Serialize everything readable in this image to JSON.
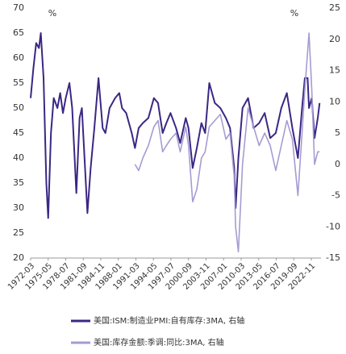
{
  "chart_data": {
    "type": "line",
    "left_unit": "%",
    "right_unit": "%",
    "x": [
      "1972-03",
      "1972-09",
      "1973-03",
      "1973-09",
      "1974-01",
      "1974-07",
      "1975-01",
      "1975-05",
      "1975-11",
      "1976-05",
      "1977-01",
      "1977-07",
      "1978-01",
      "1978-07",
      "1979-03",
      "1979-09",
      "1980-06",
      "1981-01",
      "1981-06",
      "1982-06",
      "1983-01",
      "1983-09",
      "1984-06",
      "1985-03",
      "1985-09",
      "1986-06",
      "1987-06",
      "1988-03",
      "1988-09",
      "1989-06",
      "1990-06",
      "1991-01",
      "1991-09",
      "1992-06",
      "1993-06",
      "1994-06",
      "1995-03",
      "1996-01",
      "1996-09",
      "1997-06",
      "1998-06",
      "1999-03",
      "2000-03",
      "2000-09",
      "2001-06",
      "2002-03",
      "2003-01",
      "2003-09",
      "2004-06",
      "2005-06",
      "2006-06",
      "2007-06",
      "2008-03",
      "2008-12",
      "2009-03",
      "2009-09",
      "2010-06",
      "2011-06",
      "2012-06",
      "2013-06",
      "2014-06",
      "2015-06",
      "2016-06",
      "2017-06",
      "2018-06",
      "2019-06",
      "2020-06",
      "2021-03",
      "2021-09",
      "2022-03",
      "2022-06",
      "2022-12",
      "2023-06",
      "2024-01",
      "2024-05"
    ],
    "series": [
      {
        "name": "美国:ISM:制造业PMI:自有库存:3MA, 右轴",
        "color": "#3b2784",
        "values": [
          52,
          58,
          63,
          62,
          65,
          56,
          35,
          28,
          45,
          52,
          50,
          53,
          49,
          52,
          55,
          50,
          33,
          48,
          50,
          29,
          38,
          46,
          56,
          46,
          45,
          50,
          52,
          53,
          50,
          49,
          45,
          42,
          46,
          47,
          48,
          52,
          51,
          45,
          47,
          49,
          46,
          43,
          48,
          46,
          38,
          42,
          47,
          45,
          55,
          51,
          50,
          48,
          46,
          38,
          30,
          40,
          50,
          52,
          46,
          47,
          49,
          44,
          45,
          50,
          53,
          46,
          40,
          50,
          56,
          56,
          50,
          52,
          44,
          48,
          51
        ]
      },
      {
        "name": "美国:库存金额:季调:同比:3MA, 右轴",
        "color": "#a69cd2",
        "axis": "y2",
        "values": [
          null,
          null,
          null,
          null,
          null,
          null,
          null,
          null,
          null,
          null,
          null,
          null,
          null,
          null,
          null,
          null,
          null,
          null,
          null,
          null,
          null,
          null,
          null,
          null,
          null,
          null,
          null,
          null,
          null,
          null,
          null,
          0,
          -1,
          1,
          3,
          6,
          7,
          2,
          3,
          4,
          5,
          2,
          6,
          3,
          -6,
          -4,
          1,
          2,
          6,
          7,
          8,
          4,
          5,
          -2,
          -10,
          -14,
          0,
          9,
          6,
          3,
          5,
          3,
          -1,
          3,
          7,
          4,
          -5,
          5,
          12,
          18,
          21,
          12,
          0,
          2,
          2
        ]
      }
    ],
    "xlim": [
      "1972-03",
      "2024-08"
    ],
    "xticks": [
      "1972-03",
      "1975-05",
      "1978-07",
      "1981-09",
      "1984-11",
      "1988-01",
      "1991-03",
      "1994-05",
      "1997-07",
      "2000-09",
      "2003-11",
      "2007-01",
      "2010-03",
      "2013-05",
      "2016-07",
      "2019-09",
      "2022-11"
    ],
    "ylim": [
      20,
      70
    ],
    "yticks": [
      20,
      25,
      30,
      35,
      40,
      45,
      50,
      55,
      60,
      65,
      70
    ],
    "y2lim": [
      -15,
      25
    ],
    "y2ticks": [
      -15,
      -10,
      -5,
      0,
      5,
      10,
      15,
      20,
      25
    ]
  }
}
